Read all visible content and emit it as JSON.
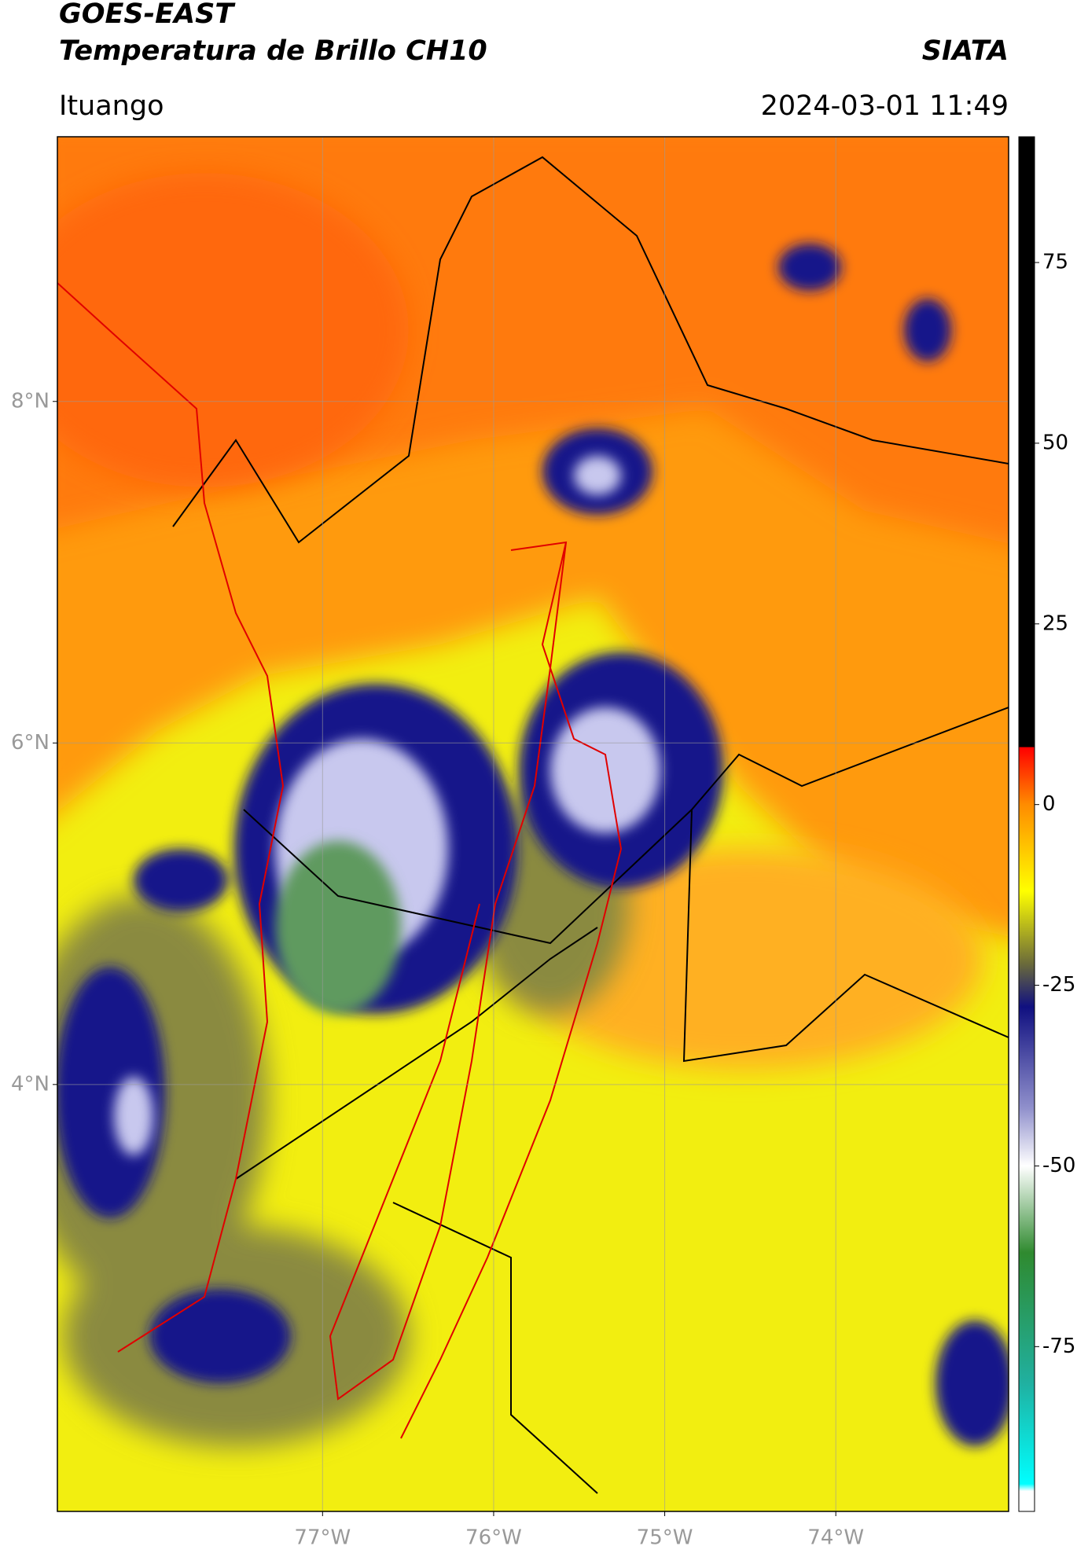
{
  "header": {
    "title": "GOES-EAST",
    "subtitle": "Temperatura de Brillo CH10",
    "organization": "SIATA",
    "location": "Ituango",
    "datetime": "2024-03-01 11:49"
  },
  "map": {
    "lon_range": [
      -78.55,
      -72.99
    ],
    "lat_range": [
      1.5,
      9.55
    ],
    "grid": true,
    "lat_ticks": [
      {
        "value": 8,
        "label": "8°N"
      },
      {
        "value": 6,
        "label": "6°N"
      },
      {
        "value": 4,
        "label": "4°N"
      }
    ],
    "lon_ticks": [
      {
        "value": -77,
        "label": "77°W"
      },
      {
        "value": -76,
        "label": "76°W"
      },
      {
        "value": -75,
        "label": "75°W"
      },
      {
        "value": -74,
        "label": "74°W"
      }
    ]
  },
  "colorbar": {
    "range": [
      -97.8,
      92.4
    ],
    "ticks": [
      75,
      50,
      25,
      0,
      -25,
      -50,
      -75
    ],
    "colors": [
      {
        "value": 92.4,
        "color": "#000000"
      },
      {
        "value": 8,
        "color": "#000000"
      },
      {
        "value": 7.9,
        "color": "#ff0000"
      },
      {
        "value": 0,
        "color": "#ff8c00"
      },
      {
        "value": -12,
        "color": "#ffff00"
      },
      {
        "value": -22,
        "color": "#6b6b3a"
      },
      {
        "value": -28,
        "color": "#101080"
      },
      {
        "value": -42,
        "color": "#9090cc"
      },
      {
        "value": -50,
        "color": "#ffffff"
      },
      {
        "value": -62,
        "color": "#2f8a2f"
      },
      {
        "value": -80,
        "color": "#20b0a0"
      },
      {
        "value": -94,
        "color": "#00ffff"
      },
      {
        "value": -95,
        "color": "#ffffff"
      },
      {
        "value": -97.8,
        "color": "#ffffff"
      }
    ]
  }
}
